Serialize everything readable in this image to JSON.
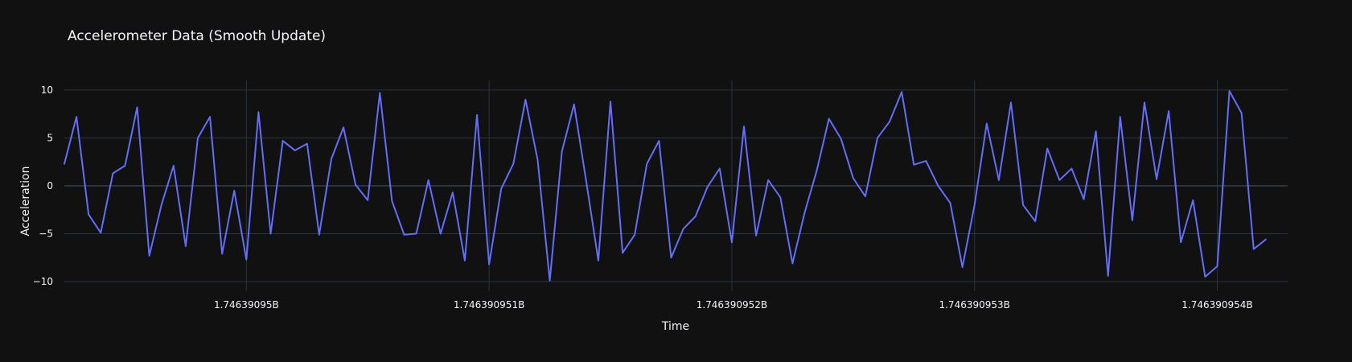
{
  "chart_data": {
    "type": "line",
    "title": "Accelerometer Data (Smooth Update)",
    "xlabel": "Time",
    "ylabel": "Acceleration",
    "grid": true,
    "xlim": [
      1746390949.25,
      1746390954.29
    ],
    "ylim": [
      -11,
      11
    ],
    "x_ticks": [
      1746390950,
      1746390951,
      1746390952,
      1746390953,
      1746390954
    ],
    "x_tick_labels": [
      "1.74639095B",
      "1.746390951B",
      "1.746390952B",
      "1.746390953B",
      "1.746390954B"
    ],
    "y_ticks": [
      -10,
      -5,
      0,
      5,
      10
    ],
    "y_tick_labels": [
      "−10",
      "−5",
      "0",
      "5",
      "10"
    ],
    "x_start": 1746390949.25,
    "x_step": 0.05,
    "series": [
      {
        "color": "#636efa",
        "values": [
          2.3,
          7.2,
          -3.0,
          -4.9,
          1.3,
          2.1,
          8.2,
          -7.3,
          -2.0,
          2.1,
          -6.3,
          5.0,
          7.2,
          -7.1,
          -0.5,
          -7.7,
          7.7,
          -5.0,
          4.7,
          3.7,
          4.4,
          -5.1,
          2.8,
          6.1,
          0.1,
          -1.5,
          9.7,
          -1.6,
          -5.1,
          -5.0,
          0.6,
          -5.0,
          -0.7,
          -7.8,
          7.4,
          -8.2,
          -0.3,
          2.3,
          9.0,
          2.7,
          -9.9,
          3.6,
          8.5,
          0.5,
          -7.8,
          8.8,
          -7.0,
          -5.1,
          2.3,
          4.7,
          -7.5,
          -4.5,
          -3.2,
          -0.1,
          1.8,
          -5.9,
          6.2,
          -5.2,
          0.6,
          -1.2,
          -8.1,
          -2.8,
          1.6,
          7.0,
          4.9,
          0.8,
          -1.1,
          5.0,
          6.7,
          9.8,
          2.2,
          2.6,
          0.0,
          -1.8,
          -8.5,
          -2.0,
          6.5,
          0.6,
          8.7,
          -2.0,
          -3.7,
          3.9,
          0.6,
          1.8,
          -1.4,
          5.7,
          -9.4,
          7.2,
          -3.6,
          8.7,
          0.7,
          7.8,
          -5.9,
          -1.5,
          -9.5,
          -8.4,
          9.9,
          7.6,
          -6.6,
          -5.6
        ]
      }
    ]
  }
}
